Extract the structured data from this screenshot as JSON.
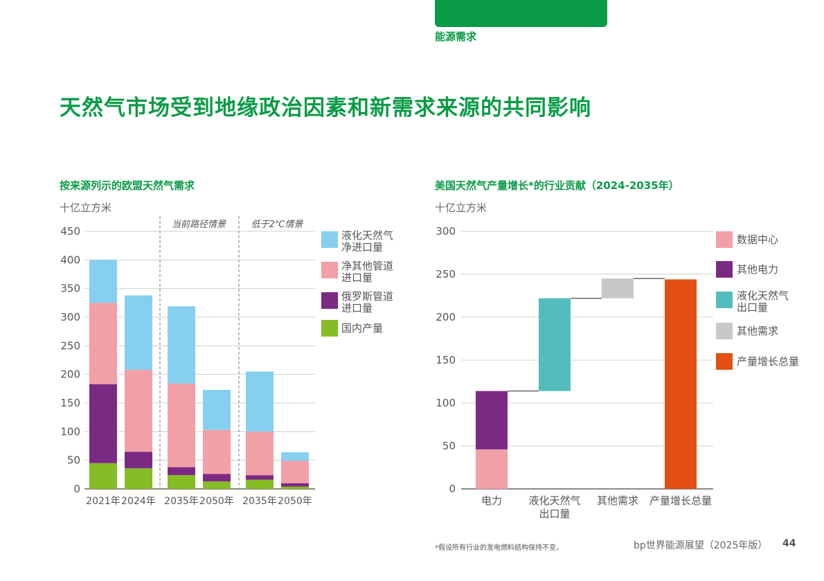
{
  "header": {
    "section_label": "能源需求",
    "title": "天然气市场受到地缘政治因素和新需求来源的共同影响"
  },
  "footer": {
    "footnote": "*假设所有行业的发电燃料结构保持不变。",
    "brand": "bp世界能源展望（2025年版）",
    "page": "44"
  },
  "colors": {
    "green": "#0a9b47",
    "lng": "#87cfee",
    "pipeline": "#f1a0a7",
    "russia": "#7b2a84",
    "domestic": "#86bc25",
    "datacenter": "#f1a0a7",
    "other_power": "#7b2a84",
    "lng_export": "#53bdbd",
    "other_demand": "#c8c8c8",
    "total": "#e44f13"
  },
  "chart_data": [
    {
      "type": "bar",
      "stacked": true,
      "title": "按来源列示的欧盟天然气需求",
      "unit": "十亿立方米",
      "ylim": [
        0,
        450
      ],
      "yticks": [
        "0",
        "50",
        "100",
        "150",
        "200",
        "250",
        "300",
        "350",
        "400",
        "450"
      ],
      "categories": [
        "2021年",
        "2024年",
        "2035年",
        "2050年",
        "2035年",
        "2050年"
      ],
      "scenarios": [
        {
          "label": "当前路径情景",
          "categories": [
            "2035年",
            "2050年"
          ]
        },
        {
          "label": "低于2℃情景",
          "categories": [
            "2035年",
            "2050年"
          ]
        }
      ],
      "series": [
        {
          "name": "国内产量",
          "values": [
            45,
            36,
            24,
            13,
            16,
            4
          ]
        },
        {
          "name": "俄罗斯管道进口量",
          "values": [
            138,
            29,
            14,
            13,
            8,
            6
          ]
        },
        {
          "name": "净其他管道进口量",
          "values": [
            142,
            143,
            146,
            77,
            76,
            39
          ]
        },
        {
          "name": "液化天然气净进口量",
          "values": [
            75,
            130,
            135,
            70,
            105,
            15
          ]
        }
      ],
      "legend": [
        {
          "line1": "液化天然气",
          "line2": "净进口量"
        },
        {
          "line1": "净其他管道",
          "line2": "进口量"
        },
        {
          "line1": "俄罗斯管道",
          "line2": "进口量"
        },
        {
          "line1": "国内产量",
          "line2": ""
        }
      ],
      "legend_position": "right",
      "grid": true
    },
    {
      "type": "bar",
      "waterfall": true,
      "title": "美国天然气产量增长*的行业贡献（2024-2035年）",
      "unit": "十亿立方米",
      "ylim": [
        0,
        300
      ],
      "yticks": [
        "0",
        "50",
        "100",
        "150",
        "200",
        "250",
        "300"
      ],
      "categories": [
        {
          "line1": "电力",
          "line2": ""
        },
        {
          "line1": "液化天然气",
          "line2": "出口量"
        },
        {
          "line1": "其他需求",
          "line2": ""
        },
        {
          "line1": "产量增长总量",
          "line2": ""
        }
      ],
      "series": [
        {
          "name": "数据中心",
          "values": [
            46,
            0,
            0,
            0
          ]
        },
        {
          "name": "其他电力",
          "values": [
            68,
            0,
            0,
            0
          ]
        },
        {
          "name": "液化天然气出口量",
          "values": [
            0,
            108,
            0,
            0
          ]
        },
        {
          "name": "其他需求",
          "values": [
            0,
            0,
            23,
            0
          ]
        },
        {
          "name": "产量增长总量",
          "values": [
            0,
            0,
            0,
            244
          ]
        }
      ],
      "legend": [
        {
          "line1": "数据中心",
          "line2": ""
        },
        {
          "line1": "其他电力",
          "line2": ""
        },
        {
          "line1": "液化天然气",
          "line2": "出口量"
        },
        {
          "line1": "其他需求",
          "line2": ""
        },
        {
          "line1": "产量增长总量",
          "line2": ""
        }
      ],
      "legend_position": "right",
      "grid": true
    }
  ]
}
